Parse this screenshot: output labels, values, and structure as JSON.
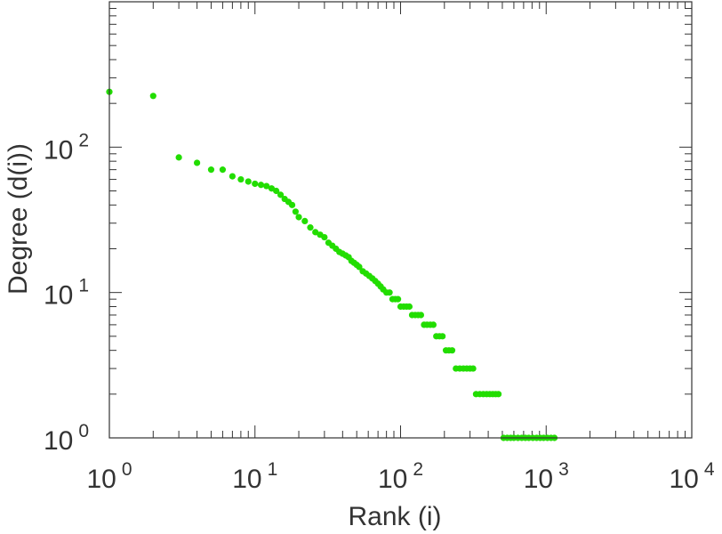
{
  "chart_data": {
    "type": "scatter",
    "title": "",
    "xlabel": "Rank (i)",
    "ylabel": "Degree (d(i))",
    "x_scale": "log",
    "y_scale": "log",
    "xlim": [
      1,
      10000
    ],
    "ylim": [
      1,
      1000
    ],
    "grid": false,
    "marker_color": "#22dd00",
    "x_ticks": [
      {
        "base": "10",
        "exp": "0",
        "value": 1
      },
      {
        "base": "10",
        "exp": "1",
        "value": 10
      },
      {
        "base": "10",
        "exp": "2",
        "value": 100
      },
      {
        "base": "10",
        "exp": "3",
        "value": 1000
      },
      {
        "base": "10",
        "exp": "4",
        "value": 10000
      }
    ],
    "y_ticks": [
      {
        "base": "10",
        "exp": "0",
        "value": 1
      },
      {
        "base": "10",
        "exp": "1",
        "value": 10
      },
      {
        "base": "10",
        "exp": "2",
        "value": 100
      }
    ],
    "points": [
      [
        1,
        240
      ],
      [
        2,
        225
      ],
      [
        3,
        85
      ],
      [
        4,
        78
      ],
      [
        5,
        70
      ],
      [
        6,
        70
      ],
      [
        7,
        63
      ],
      [
        8,
        60
      ],
      [
        9,
        58
      ],
      [
        10,
        56
      ],
      [
        11,
        55
      ],
      [
        12,
        54
      ],
      [
        13,
        52
      ],
      [
        14,
        50
      ],
      [
        15,
        47
      ],
      [
        16,
        44
      ],
      [
        17,
        42
      ],
      [
        18,
        40
      ],
      [
        19,
        36
      ],
      [
        20,
        33
      ],
      [
        22,
        31
      ],
      [
        24,
        28
      ],
      [
        26,
        26
      ],
      [
        28,
        25
      ],
      [
        30,
        24
      ],
      [
        32,
        22
      ],
      [
        34,
        21
      ],
      [
        36,
        20
      ],
      [
        38,
        19
      ],
      [
        40,
        18.5
      ],
      [
        42,
        18
      ],
      [
        44,
        17.5
      ],
      [
        46,
        16.5
      ],
      [
        48,
        16
      ],
      [
        50,
        15.5
      ],
      [
        52,
        15
      ],
      [
        55,
        14
      ],
      [
        58,
        13.5
      ],
      [
        61,
        13
      ],
      [
        64,
        12.5
      ],
      [
        67,
        12
      ],
      [
        70,
        11.5
      ],
      [
        73,
        11
      ],
      [
        76,
        10.5
      ],
      [
        80,
        10
      ],
      [
        84,
        10
      ],
      [
        88,
        9
      ],
      [
        92,
        9
      ],
      [
        96,
        9
      ],
      [
        100,
        8
      ],
      [
        105,
        8
      ],
      [
        110,
        8
      ],
      [
        115,
        8
      ],
      [
        120,
        7
      ],
      [
        126,
        7
      ],
      [
        132,
        7
      ],
      [
        138,
        7
      ],
      [
        145,
        6
      ],
      [
        152,
        6
      ],
      [
        160,
        6
      ],
      [
        168,
        6
      ],
      [
        176,
        5
      ],
      [
        185,
        5
      ],
      [
        194,
        5
      ],
      [
        205,
        4
      ],
      [
        215,
        4
      ],
      [
        226,
        4
      ],
      [
        240,
        3
      ],
      [
        255,
        3
      ],
      [
        270,
        3
      ],
      [
        285,
        3
      ],
      [
        300,
        3
      ],
      [
        315,
        3
      ],
      [
        330,
        2
      ],
      [
        350,
        2
      ],
      [
        370,
        2
      ],
      [
        390,
        2
      ],
      [
        410,
        2
      ],
      [
        430,
        2
      ],
      [
        450,
        2
      ],
      [
        470,
        2
      ],
      [
        510,
        1
      ],
      [
        540,
        1
      ],
      [
        570,
        1
      ],
      [
        600,
        1
      ],
      [
        640,
        1
      ],
      [
        680,
        1
      ],
      [
        720,
        1
      ],
      [
        760,
        1
      ],
      [
        810,
        1
      ],
      [
        860,
        1
      ],
      [
        910,
        1
      ],
      [
        960,
        1
      ],
      [
        1020,
        1
      ],
      [
        1080,
        1
      ],
      [
        1140,
        1
      ]
    ]
  }
}
